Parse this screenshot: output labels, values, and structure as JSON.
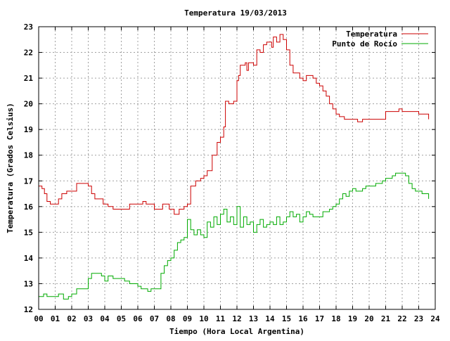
{
  "chart_data": {
    "type": "line",
    "title": "Temperatura 19/03/2013",
    "xlabel": "Tiempo (Hora Local Argentina)",
    "ylabel": "Temperatura (Grados Celsius)",
    "xlim": [
      0,
      24
    ],
    "ylim": [
      12,
      23
    ],
    "x_ticks": [
      0,
      1,
      2,
      3,
      4,
      5,
      6,
      7,
      8,
      9,
      10,
      11,
      12,
      13,
      14,
      15,
      16,
      17,
      18,
      19,
      20,
      21,
      22,
      23,
      24
    ],
    "x_tick_labels": [
      "00",
      "01",
      "02",
      "03",
      "04",
      "05",
      "06",
      "07",
      "08",
      "09",
      "10",
      "11",
      "12",
      "13",
      "14",
      "15",
      "16",
      "17",
      "18",
      "19",
      "20",
      "21",
      "22",
      "23",
      "24"
    ],
    "y_ticks": [
      12,
      13,
      14,
      15,
      16,
      17,
      18,
      19,
      20,
      21,
      22,
      23
    ],
    "y_tick_labels": [
      "12",
      "13",
      "14",
      "15",
      "16",
      "17",
      "18",
      "19",
      "20",
      "21",
      "22",
      "23"
    ],
    "grid": true,
    "legend_position": "top-right",
    "series": [
      {
        "name": "Temperatura",
        "color": "#cc0000",
        "x": [
          0.0,
          0.2,
          0.35,
          0.5,
          0.7,
          1.0,
          1.2,
          1.4,
          1.7,
          2.0,
          2.3,
          2.5,
          2.8,
          3.0,
          3.2,
          3.4,
          3.6,
          3.9,
          4.2,
          4.5,
          5.0,
          5.5,
          6.0,
          6.3,
          6.5,
          7.0,
          7.2,
          7.5,
          7.9,
          8.2,
          8.5,
          8.8,
          9.0,
          9.2,
          9.5,
          9.8,
          10.0,
          10.2,
          10.5,
          10.8,
          11.0,
          11.1,
          11.2,
          11.3,
          11.5,
          11.8,
          12.0,
          12.1,
          12.2,
          12.5,
          12.6,
          12.7,
          13.0,
          13.2,
          13.4,
          13.6,
          13.8,
          14.0,
          14.1,
          14.2,
          14.4,
          14.6,
          14.8,
          15.0,
          15.2,
          15.4,
          15.6,
          15.8,
          16.0,
          16.2,
          16.4,
          16.6,
          16.8,
          17.0,
          17.2,
          17.4,
          17.6,
          17.8,
          18.0,
          18.2,
          18.5,
          18.8,
          19.0,
          19.3,
          19.6,
          20.0,
          20.3,
          20.6,
          21.0,
          21.3,
          21.6,
          21.8,
          22.0,
          22.2,
          22.5,
          22.8,
          23.0,
          23.2,
          23.4,
          23.6
        ],
        "values": [
          16.8,
          16.7,
          16.5,
          16.2,
          16.1,
          16.1,
          16.3,
          16.5,
          16.6,
          16.6,
          16.9,
          16.9,
          16.9,
          16.8,
          16.5,
          16.3,
          16.3,
          16.1,
          16.0,
          15.9,
          15.9,
          16.1,
          16.1,
          16.2,
          16.1,
          15.9,
          15.9,
          16.1,
          15.9,
          15.7,
          15.9,
          16.0,
          16.1,
          16.8,
          17.0,
          17.1,
          17.2,
          17.4,
          18.0,
          18.5,
          18.7,
          18.7,
          19.1,
          20.1,
          20.0,
          20.1,
          20.9,
          21.1,
          21.5,
          21.6,
          21.3,
          21.6,
          21.5,
          22.1,
          22.0,
          22.3,
          22.4,
          22.4,
          22.2,
          22.6,
          22.4,
          22.7,
          22.5,
          22.1,
          21.5,
          21.2,
          21.2,
          21.0,
          20.9,
          21.1,
          21.1,
          21.0,
          20.8,
          20.7,
          20.5,
          20.3,
          20.0,
          19.8,
          19.6,
          19.5,
          19.4,
          19.4,
          19.4,
          19.3,
          19.4,
          19.4,
          19.4,
          19.4,
          19.7,
          19.7,
          19.7,
          19.8,
          19.7,
          19.7,
          19.7,
          19.7,
          19.6,
          19.6,
          19.6,
          19.4
        ]
      },
      {
        "name": "Punto de Rocío",
        "color": "#00aa00",
        "x": [
          0.0,
          0.3,
          0.5,
          0.8,
          1.0,
          1.2,
          1.5,
          1.8,
          2.0,
          2.3,
          2.6,
          3.0,
          3.2,
          3.4,
          3.6,
          3.8,
          4.0,
          4.2,
          4.5,
          4.8,
          5.0,
          5.2,
          5.5,
          5.8,
          6.0,
          6.2,
          6.4,
          6.6,
          6.8,
          7.0,
          7.2,
          7.4,
          7.6,
          7.8,
          8.0,
          8.2,
          8.4,
          8.6,
          8.8,
          9.0,
          9.2,
          9.4,
          9.6,
          9.8,
          10.0,
          10.2,
          10.4,
          10.6,
          10.8,
          11.0,
          11.2,
          11.4,
          11.6,
          11.8,
          12.0,
          12.2,
          12.4,
          12.6,
          12.8,
          13.0,
          13.2,
          13.4,
          13.6,
          13.8,
          14.0,
          14.2,
          14.4,
          14.6,
          14.8,
          15.0,
          15.2,
          15.4,
          15.6,
          15.8,
          16.0,
          16.2,
          16.4,
          16.6,
          16.8,
          17.0,
          17.2,
          17.4,
          17.6,
          17.8,
          18.0,
          18.2,
          18.4,
          18.6,
          18.8,
          19.0,
          19.2,
          19.4,
          19.6,
          19.8,
          20.0,
          20.2,
          20.4,
          20.6,
          20.8,
          21.0,
          21.2,
          21.4,
          21.6,
          21.8,
          22.0,
          22.2,
          22.4,
          22.6,
          22.8,
          23.0,
          23.2,
          23.4,
          23.6
        ],
        "values": [
          12.5,
          12.6,
          12.5,
          12.5,
          12.5,
          12.6,
          12.4,
          12.5,
          12.6,
          12.8,
          12.8,
          13.2,
          13.4,
          13.4,
          13.4,
          13.3,
          13.1,
          13.3,
          13.2,
          13.2,
          13.2,
          13.1,
          13.0,
          13.0,
          12.9,
          12.8,
          12.8,
          12.7,
          12.8,
          12.8,
          12.8,
          13.4,
          13.7,
          13.9,
          14.0,
          14.3,
          14.6,
          14.7,
          14.8,
          15.5,
          15.1,
          14.9,
          15.1,
          14.9,
          14.8,
          15.4,
          15.2,
          15.6,
          15.3,
          15.7,
          15.9,
          15.4,
          15.6,
          15.3,
          16.0,
          15.2,
          15.6,
          15.3,
          15.4,
          15.0,
          15.3,
          15.5,
          15.2,
          15.3,
          15.4,
          15.3,
          15.6,
          15.3,
          15.4,
          15.6,
          15.8,
          15.6,
          15.7,
          15.4,
          15.6,
          15.8,
          15.7,
          15.6,
          15.6,
          15.6,
          15.8,
          15.8,
          15.9,
          16.0,
          16.1,
          16.3,
          16.5,
          16.4,
          16.6,
          16.7,
          16.6,
          16.6,
          16.7,
          16.8,
          16.8,
          16.8,
          16.9,
          16.9,
          17.0,
          17.1,
          17.1,
          17.2,
          17.3,
          17.3,
          17.3,
          17.2,
          16.9,
          16.7,
          16.6,
          16.6,
          16.5,
          16.5,
          16.3
        ]
      }
    ]
  }
}
